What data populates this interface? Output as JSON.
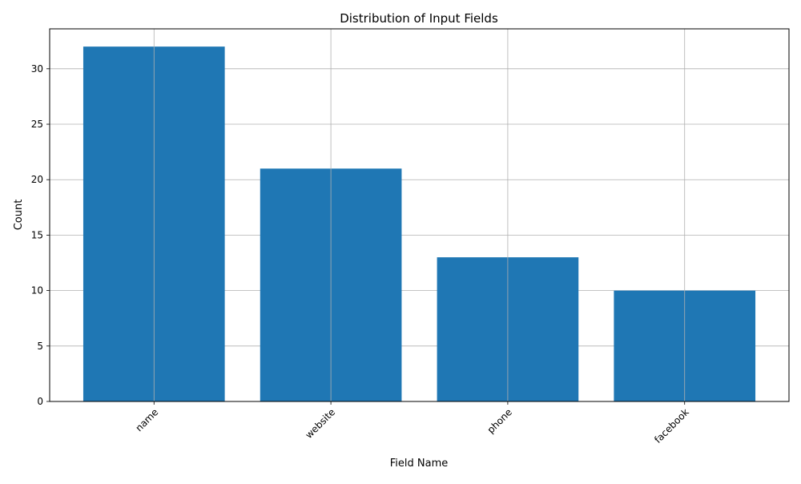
{
  "chart_data": {
    "type": "bar",
    "title": "Distribution of Input Fields",
    "xlabel": "Field Name",
    "ylabel": "Count",
    "categories": [
      "name",
      "website",
      "phone",
      "facebook"
    ],
    "values": [
      32,
      21,
      13,
      10
    ],
    "ylim": [
      0,
      33.6
    ],
    "yticks": [
      0,
      5,
      10,
      15,
      20,
      25,
      30
    ],
    "grid": true,
    "legend": "none",
    "bar_color": "#1f77b4",
    "grid_color": "#b0b0b0"
  }
}
